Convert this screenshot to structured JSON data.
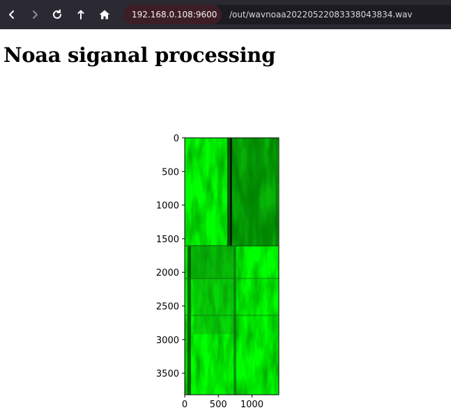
{
  "browser": {
    "url_host": "192.168.0.108:9600",
    "url_path": "/out/wavnoaa20220522083338043834.wav",
    "buttons": [
      "back",
      "forward",
      "reload",
      "up",
      "home"
    ]
  },
  "page": {
    "title": "Noaa siganal processing"
  },
  "chart_data": {
    "type": "heatmap",
    "title": "",
    "xlabel": "",
    "ylabel": "",
    "xlim": [
      0,
      1400
    ],
    "ylim": [
      3820,
      0
    ],
    "xticks": [
      0,
      500,
      1000
    ],
    "yticks": [
      0,
      500,
      1000,
      1500,
      2000,
      2500,
      3000,
      3500
    ],
    "colormap_hint": "green channel image",
    "colors": {
      "base": "#00ff00",
      "dark": "#0a5a0a",
      "mid": "#1fa81f"
    }
  }
}
